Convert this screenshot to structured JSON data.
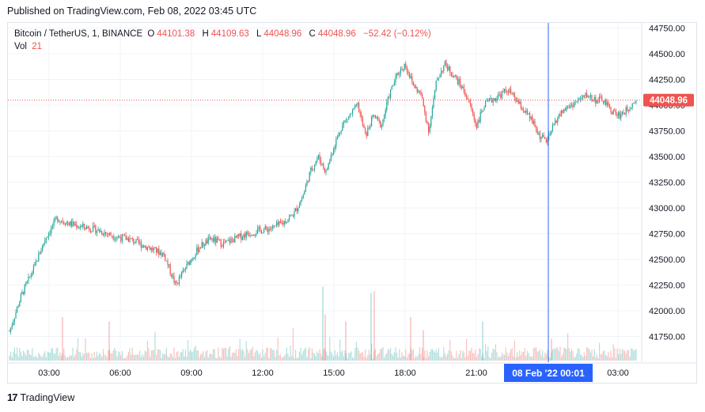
{
  "header": {
    "published": "Published on TradingView.com, Feb 08, 2022 03:45 UTC"
  },
  "legend": {
    "symbol": "Bitcoin / TetherUS, 1, BINANCE",
    "o_label": "O",
    "o_value": "44101.38",
    "h_label": "H",
    "h_value": "44109.63",
    "l_label": "L",
    "l_value": "44048.96",
    "c_label": "C",
    "c_value": "44048.96",
    "change": "−52.42 (−0.12%)",
    "vol_label": "Vol",
    "vol_value": "21"
  },
  "price_badge": {
    "text": "44048.96",
    "color": "#ef5350"
  },
  "crosshair_label": {
    "text": "08 Feb '22  00:01",
    "color": "#2962ff"
  },
  "footer": {
    "brand": "TradingView",
    "logo_text": "17"
  },
  "colors": {
    "up": "#26a69a",
    "down": "#ef5350",
    "grid": "#f0f3fa",
    "last_price_line": "#ef5350"
  },
  "chart_data": {
    "type": "candlestick",
    "title": "Bitcoin / TetherUS, 1, BINANCE",
    "x_ticks": [
      "03:00",
      "06:00",
      "09:00",
      "12:00",
      "15:00",
      "18:00",
      "21:00",
      "03:00"
    ],
    "y_ticks": [
      "44750.00",
      "44500.00",
      "44250.00",
      "44000.00",
      "43750.00",
      "43500.00",
      "43250.00",
      "43000.00",
      "42750.00",
      "42500.00",
      "42250.00",
      "42000.00",
      "41750.00"
    ],
    "ylim": [
      41500,
      44800
    ],
    "last_price": 44048.96,
    "grid": true,
    "price_path": [
      [
        0,
        41800
      ],
      [
        15,
        42150
      ],
      [
        30,
        42400
      ],
      [
        45,
        42700
      ],
      [
        60,
        42900
      ],
      [
        75,
        42850
      ],
      [
        90,
        42820
      ],
      [
        105,
        42800
      ],
      [
        120,
        42760
      ],
      [
        135,
        42720
      ],
      [
        150,
        42700
      ],
      [
        165,
        42650
      ],
      [
        180,
        42600
      ],
      [
        195,
        42550
      ],
      [
        210,
        42250
      ],
      [
        225,
        42450
      ],
      [
        240,
        42620
      ],
      [
        255,
        42700
      ],
      [
        270,
        42650
      ],
      [
        285,
        42700
      ],
      [
        300,
        42750
      ],
      [
        315,
        42780
      ],
      [
        330,
        42800
      ],
      [
        345,
        42850
      ],
      [
        360,
        42950
      ],
      [
        370,
        43100
      ],
      [
        380,
        43350
      ],
      [
        390,
        43500
      ],
      [
        400,
        43350
      ],
      [
        410,
        43600
      ],
      [
        420,
        43800
      ],
      [
        430,
        43900
      ],
      [
        440,
        44000
      ],
      [
        450,
        43700
      ],
      [
        460,
        43900
      ],
      [
        470,
        43800
      ],
      [
        480,
        44100
      ],
      [
        490,
        44300
      ],
      [
        500,
        44400
      ],
      [
        510,
        44200
      ],
      [
        520,
        44100
      ],
      [
        530,
        43750
      ],
      [
        540,
        44250
      ],
      [
        550,
        44400
      ],
      [
        560,
        44300
      ],
      [
        570,
        44200
      ],
      [
        580,
        44050
      ],
      [
        590,
        43800
      ],
      [
        600,
        44000
      ],
      [
        610,
        44050
      ],
      [
        620,
        44100
      ],
      [
        630,
        44150
      ],
      [
        640,
        44050
      ],
      [
        650,
        43950
      ],
      [
        660,
        43850
      ],
      [
        670,
        43700
      ],
      [
        680,
        43650
      ],
      [
        690,
        43850
      ],
      [
        700,
        43950
      ],
      [
        710,
        44000
      ],
      [
        720,
        44050
      ],
      [
        730,
        44100
      ],
      [
        740,
        44050
      ],
      [
        750,
        44050
      ],
      [
        760,
        43950
      ],
      [
        770,
        43900
      ],
      [
        780,
        43950
      ],
      [
        790,
        44049
      ]
    ],
    "volume_spikes": [
      [
        67,
        0.5
      ],
      [
        126,
        0.45
      ],
      [
        396,
        0.85
      ],
      [
        399,
        0.53
      ],
      [
        425,
        0.45
      ],
      [
        457,
        0.78
      ],
      [
        461,
        0.8
      ],
      [
        507,
        0.5
      ],
      [
        523,
        0.35
      ],
      [
        598,
        0.45
      ],
      [
        685,
        0.25
      ]
    ],
    "volume_max_note": "spikes given as fraction of volume pane height"
  }
}
